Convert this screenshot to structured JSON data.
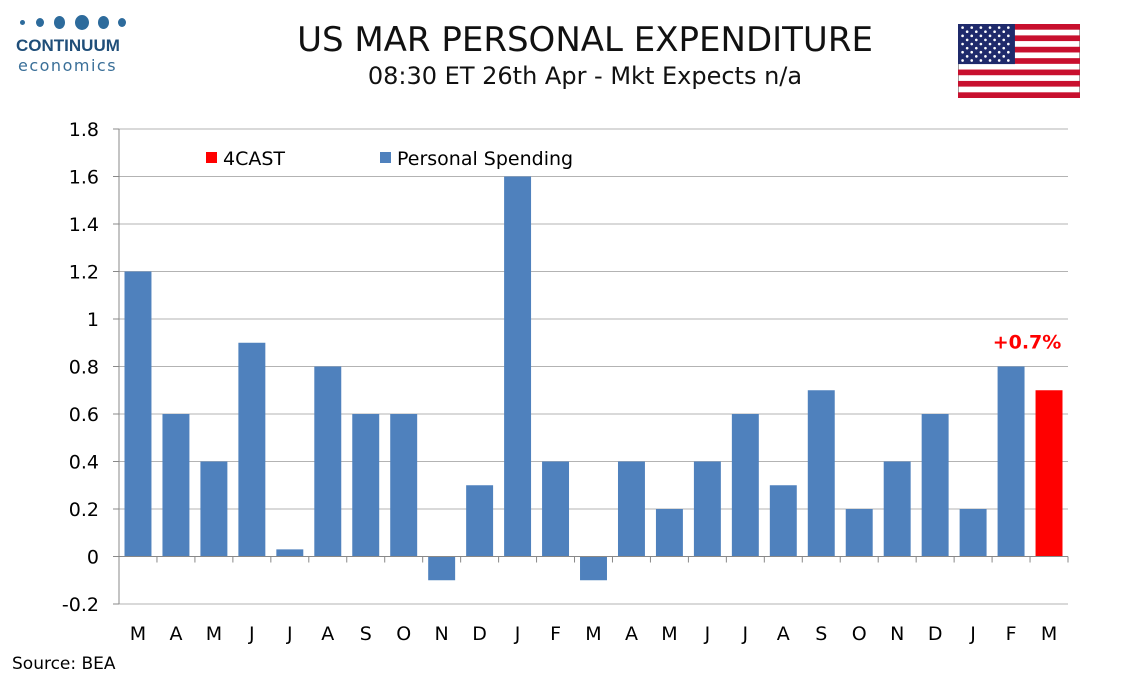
{
  "header": {
    "title": "US MAR PERSONAL EXPENDITURE",
    "subtitle": "08:30 ET 26th Apr - Mkt Expects n/a"
  },
  "logo": {
    "name": "CONTINUUM",
    "sub": "economics"
  },
  "flag": {
    "icon": "us-flag-icon"
  },
  "source": "Source: BEA",
  "colors": {
    "spending": "#4f81bd",
    "forecast": "#ff0000",
    "grid": "#b3b3b3"
  },
  "chart_data": {
    "type": "bar",
    "title": "",
    "xlabel": "",
    "ylabel": "",
    "ylim": [
      -0.2,
      1.8
    ],
    "yticks": [
      "1.8",
      "1.6",
      "1.4",
      "1.2",
      "1",
      "0.8",
      "0.6",
      "0.4",
      "0.2",
      "0",
      "-0.2"
    ],
    "ytick_values": [
      1.8,
      1.6,
      1.4,
      1.2,
      1.0,
      0.8,
      0.6,
      0.4,
      0.2,
      0.0,
      -0.2
    ],
    "grid": true,
    "legend_position": "top-left",
    "categories": [
      "M",
      "A",
      "M",
      "J",
      "J",
      "A",
      "S",
      "O",
      "N",
      "D",
      "J",
      "F",
      "M",
      "A",
      "M",
      "J",
      "J",
      "A",
      "S",
      "O",
      "N",
      "D",
      "J",
      "F",
      "M"
    ],
    "series": [
      {
        "name": "Personal Spending",
        "values": [
          1.2,
          0.6,
          0.4,
          0.9,
          0.03,
          0.8,
          0.6,
          0.6,
          -0.1,
          0.3,
          1.6,
          0.4,
          -0.1,
          0.4,
          0.2,
          0.4,
          0.6,
          0.3,
          0.7,
          0.2,
          0.4,
          0.6,
          0.2,
          0.8,
          null
        ]
      },
      {
        "name": "4CAST",
        "values": [
          null,
          null,
          null,
          null,
          null,
          null,
          null,
          null,
          null,
          null,
          null,
          null,
          null,
          null,
          null,
          null,
          null,
          null,
          null,
          null,
          null,
          null,
          null,
          null,
          0.7
        ]
      }
    ],
    "annotations": [
      {
        "text": "+0.7%",
        "category_index": 24,
        "series": "4CAST"
      }
    ]
  }
}
